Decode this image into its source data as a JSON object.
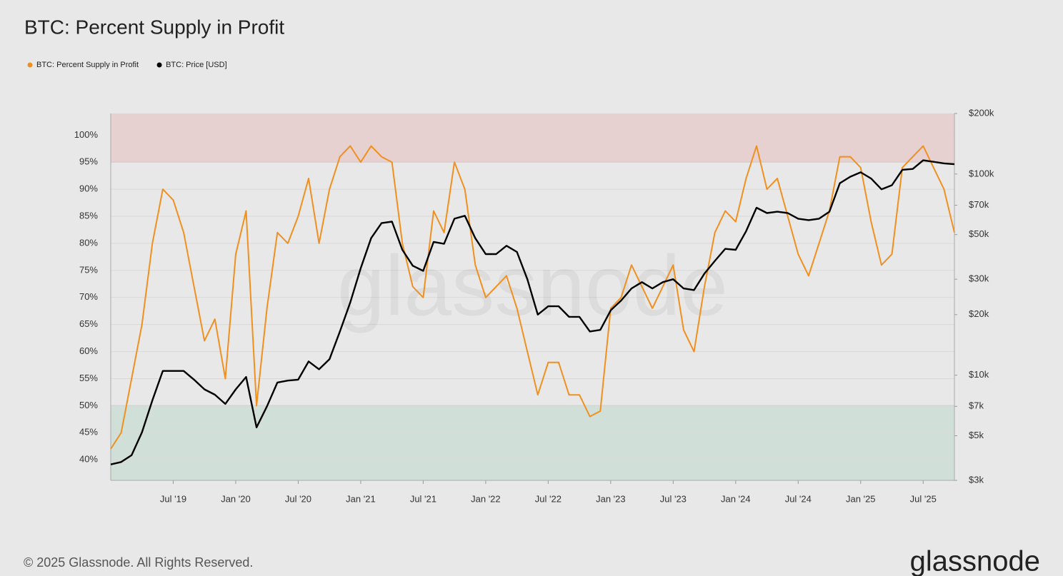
{
  "chart_data": {
    "type": "line",
    "title": "BTC: Percent Supply in Profit",
    "watermark": "glassnode",
    "footer": "© 2025 Glassnode. All Rights Reserved.",
    "logo": "glassnode",
    "grid": true,
    "legend": "top-left",
    "x": [
      "2019-01",
      "2019-02",
      "2019-03",
      "2019-04",
      "2019-05",
      "2019-06",
      "2019-07",
      "2019-08",
      "2019-09",
      "2019-10",
      "2019-11",
      "2019-12",
      "2020-01",
      "2020-02",
      "2020-03",
      "2020-04",
      "2020-05",
      "2020-06",
      "2020-07",
      "2020-08",
      "2020-09",
      "2020-10",
      "2020-11",
      "2020-12",
      "2021-01",
      "2021-02",
      "2021-03",
      "2021-04",
      "2021-05",
      "2021-06",
      "2021-07",
      "2021-08",
      "2021-09",
      "2021-10",
      "2021-11",
      "2021-12",
      "2022-01",
      "2022-02",
      "2022-03",
      "2022-04",
      "2022-05",
      "2022-06",
      "2022-07",
      "2022-08",
      "2022-09",
      "2022-10",
      "2022-11",
      "2022-12",
      "2023-01",
      "2023-02",
      "2023-03",
      "2023-04",
      "2023-05",
      "2023-06",
      "2023-07",
      "2023-08",
      "2023-09",
      "2023-10",
      "2023-11",
      "2023-12",
      "2024-01",
      "2024-02",
      "2024-03",
      "2024-04",
      "2024-05",
      "2024-06",
      "2024-07",
      "2024-08",
      "2024-09",
      "2024-10",
      "2024-11",
      "2024-12",
      "2025-01",
      "2025-02",
      "2025-03",
      "2025-04",
      "2025-05",
      "2025-06",
      "2025-07",
      "2025-08",
      "2025-09",
      "2025-10"
    ],
    "xlim": [
      "2019-01",
      "2025-10"
    ],
    "xticks": [
      {
        "value": "2019-07",
        "label": "Jul '19"
      },
      {
        "value": "2020-01",
        "label": "Jan '20"
      },
      {
        "value": "2020-07",
        "label": "Jul '20"
      },
      {
        "value": "2021-01",
        "label": "Jan '21"
      },
      {
        "value": "2021-07",
        "label": "Jul '21"
      },
      {
        "value": "2022-01",
        "label": "Jan '22"
      },
      {
        "value": "2022-07",
        "label": "Jul '22"
      },
      {
        "value": "2023-01",
        "label": "Jan '23"
      },
      {
        "value": "2023-07",
        "label": "Jul '23"
      },
      {
        "value": "2024-01",
        "label": "Jan '24"
      },
      {
        "value": "2024-07",
        "label": "Jul '24"
      },
      {
        "value": "2025-01",
        "label": "Jan '25"
      },
      {
        "value": "2025-07",
        "label": "Jul '25"
      }
    ],
    "ylim": [
      36.2,
      104
    ],
    "yticks": [
      {
        "value": 40,
        "label": "40%"
      },
      {
        "value": 45,
        "label": "45%"
      },
      {
        "value": 50,
        "label": "50%"
      },
      {
        "value": 55,
        "label": "55%"
      },
      {
        "value": 60,
        "label": "60%"
      },
      {
        "value": 65,
        "label": "65%"
      },
      {
        "value": 70,
        "label": "70%"
      },
      {
        "value": 75,
        "label": "75%"
      },
      {
        "value": 80,
        "label": "80%"
      },
      {
        "value": 85,
        "label": "85%"
      },
      {
        "value": 90,
        "label": "90%"
      },
      {
        "value": 95,
        "label": "95%"
      },
      {
        "value": 100,
        "label": "100%"
      }
    ],
    "y2scale": "log",
    "y2lim": [
      3000,
      200000
    ],
    "y2ticks": [
      {
        "value": 3000,
        "label": "$3k"
      },
      {
        "value": 5000,
        "label": "$5k"
      },
      {
        "value": 7000,
        "label": "$7k"
      },
      {
        "value": 10000,
        "label": "$10k"
      },
      {
        "value": 20000,
        "label": "$20k"
      },
      {
        "value": 30000,
        "label": "$30k"
      },
      {
        "value": 50000,
        "label": "$50k"
      },
      {
        "value": 70000,
        "label": "$70k"
      },
      {
        "value": 100000,
        "label": "$100k"
      },
      {
        "value": 200000,
        "label": "$200k"
      }
    ],
    "bands": [
      {
        "from": 95,
        "color": "#e6d0d0"
      },
      {
        "to": 50,
        "color": "#d0e0d8"
      }
    ],
    "series": [
      {
        "name": "BTC: Percent Supply in Profit",
        "color": "#f0901e",
        "axis": "y",
        "values": [
          42,
          45,
          55,
          65,
          80,
          90,
          88,
          82,
          72,
          62,
          66,
          55,
          78,
          86,
          50,
          68,
          82,
          80,
          85,
          92,
          80,
          90,
          96,
          98,
          95,
          98,
          96,
          95,
          80,
          72,
          70,
          86,
          82,
          95,
          90,
          76,
          70,
          72,
          74,
          68,
          60,
          52,
          58,
          58,
          52,
          52,
          48,
          49,
          68,
          70,
          76,
          72,
          68,
          72,
          76,
          64,
          60,
          72,
          82,
          86,
          84,
          92,
          98,
          90,
          92,
          85,
          78,
          74,
          80,
          86,
          96,
          96,
          94,
          84,
          76,
          78,
          94,
          96,
          98,
          94,
          90,
          82
        ]
      },
      {
        "name": "BTC: Price [USD]",
        "color": "#000000",
        "axis": "y2",
        "values": [
          3600,
          3700,
          4000,
          5200,
          7500,
          10500,
          10500,
          10500,
          9500,
          8500,
          8000,
          7200,
          8500,
          9800,
          5500,
          7000,
          9200,
          9400,
          9500,
          11700,
          10700,
          12000,
          16500,
          23000,
          34000,
          48000,
          57000,
          58000,
          42000,
          35000,
          33000,
          46000,
          45000,
          60000,
          62000,
          48000,
          40000,
          40000,
          44000,
          41000,
          30000,
          20000,
          22000,
          22000,
          19500,
          19500,
          16500,
          16800,
          21000,
          23500,
          27000,
          29000,
          27000,
          29000,
          30000,
          27000,
          26500,
          32000,
          37000,
          42500,
          42000,
          52000,
          68000,
          64000,
          65000,
          64000,
          60000,
          59000,
          60000,
          65000,
          90000,
          97000,
          102000,
          95000,
          84000,
          88000,
          105000,
          106000,
          117000,
          115000,
          113000,
          112000
        ]
      }
    ]
  }
}
